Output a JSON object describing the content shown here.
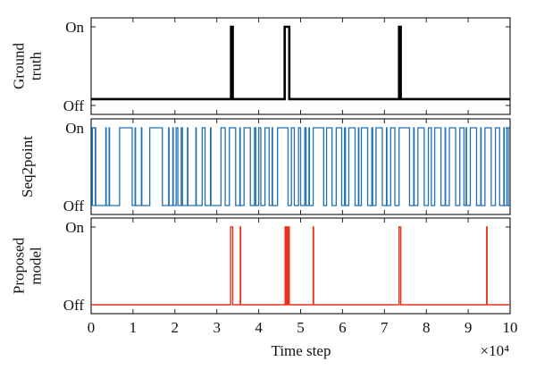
{
  "chart_data": {
    "type": "line",
    "layout": "three stacked panels sharing x axis",
    "xlabel": "Time step",
    "x_multiplier_label": "×10⁴",
    "xlim": [
      0,
      10
    ],
    "xticks": [
      "0",
      "1",
      "2",
      "3",
      "4",
      "5",
      "6",
      "7",
      "8",
      "9",
      "10"
    ],
    "panels": [
      {
        "id": "ground-truth",
        "ylabel_lines": [
          "Ground",
          "truth"
        ],
        "ytick_on": "On",
        "ytick_off": "Off",
        "color": "#000000",
        "stroke_width": 2.6,
        "baseline_level": 0.02,
        "on_segments": [
          [
            3.34,
            3.38
          ],
          [
            4.62,
            4.73
          ],
          [
            7.35,
            7.39
          ]
        ]
      },
      {
        "id": "seq2point",
        "ylabel_lines": [
          "Seq2point"
        ],
        "ytick_on": "On",
        "ytick_off": "Off",
        "color": "#1f6fb5",
        "stroke_width": 1.3,
        "baseline_level": 0.0,
        "on_segments": [
          [
            0.02,
            0.03
          ],
          [
            0.1,
            0.11
          ],
          [
            0.35,
            0.36
          ],
          [
            0.43,
            0.44
          ],
          [
            0.68,
            0.98
          ],
          [
            1.05,
            1.06
          ],
          [
            1.2,
            1.21
          ],
          [
            1.4,
            1.7
          ],
          [
            1.85,
            1.86
          ],
          [
            1.95,
            1.96
          ],
          [
            2.03,
            2.07
          ],
          [
            2.15,
            2.18
          ],
          [
            2.3,
            2.31
          ],
          [
            2.5,
            2.51
          ],
          [
            2.65,
            2.72
          ],
          [
            2.85,
            2.86
          ],
          [
            3.1,
            3.2
          ],
          [
            3.3,
            3.45
          ],
          [
            3.55,
            3.56
          ],
          [
            3.65,
            3.8
          ],
          [
            3.9,
            3.93
          ],
          [
            4.0,
            4.05
          ],
          [
            4.15,
            4.25
          ],
          [
            4.32,
            4.33
          ],
          [
            4.45,
            4.7
          ],
          [
            4.78,
            4.85
          ],
          [
            4.95,
            5.0
          ],
          [
            5.1,
            5.13
          ],
          [
            5.2,
            5.21
          ],
          [
            5.3,
            5.55
          ],
          [
            5.62,
            5.75
          ],
          [
            5.85,
            5.98
          ],
          [
            6.05,
            6.07
          ],
          [
            6.15,
            6.3
          ],
          [
            6.38,
            6.39
          ],
          [
            6.45,
            6.6
          ],
          [
            6.7,
            6.72
          ],
          [
            6.8,
            6.95
          ],
          [
            7.05,
            7.06
          ],
          [
            7.15,
            7.25
          ],
          [
            7.35,
            7.6
          ],
          [
            7.7,
            7.71
          ],
          [
            7.8,
            7.95
          ],
          [
            8.05,
            8.12
          ],
          [
            8.2,
            8.35
          ],
          [
            8.45,
            8.46
          ],
          [
            8.55,
            8.7
          ],
          [
            8.8,
            8.9
          ],
          [
            8.95,
            8.96
          ],
          [
            9.05,
            9.2
          ],
          [
            9.3,
            9.31
          ],
          [
            9.4,
            9.55
          ],
          [
            9.65,
            9.75
          ],
          [
            9.85,
            9.86
          ],
          [
            9.92,
            9.96
          ]
        ]
      },
      {
        "id": "proposed-model",
        "ylabel_lines": [
          "Proposed",
          "model"
        ],
        "ytick_on": "On",
        "ytick_off": "Off",
        "color": "#e8321e",
        "stroke_width": 1.4,
        "baseline_level": 0.0,
        "on_segments": [
          [
            3.33,
            3.38
          ],
          [
            3.56,
            3.57
          ],
          [
            4.63,
            4.66
          ],
          [
            4.68,
            4.7
          ],
          [
            4.72,
            4.73
          ],
          [
            5.3,
            5.31
          ],
          [
            7.35,
            7.39
          ],
          [
            9.44,
            9.45
          ]
        ]
      }
    ]
  }
}
